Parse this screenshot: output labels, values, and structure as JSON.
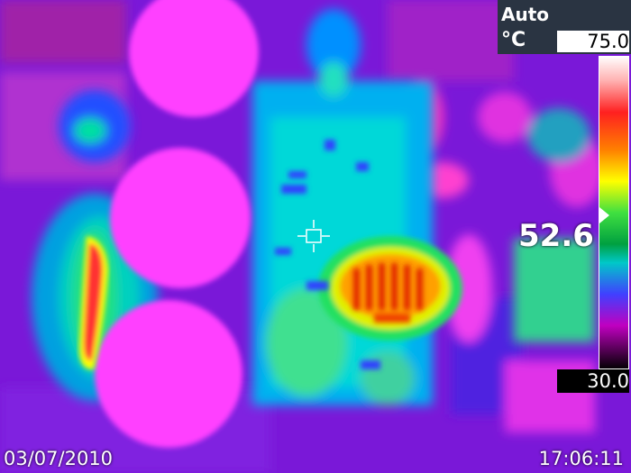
{
  "header": {
    "mode": "Auto",
    "unit": "°C"
  },
  "scale": {
    "max": "75.0",
    "min": "30.0",
    "colors": [
      "#ffffff",
      "#ffd0d0",
      "#ff3030",
      "#ff8000",
      "#ffff00",
      "#40ff40",
      "#00a040",
      "#00c0c0",
      "#4040ff",
      "#c000c0",
      "#000000"
    ],
    "marker_level": 0.49
  },
  "spot": {
    "value": "52.6",
    "crosshair_icon": "crosshair-icon"
  },
  "footer": {
    "date": "03/07/2010",
    "time": "17:06:11"
  }
}
